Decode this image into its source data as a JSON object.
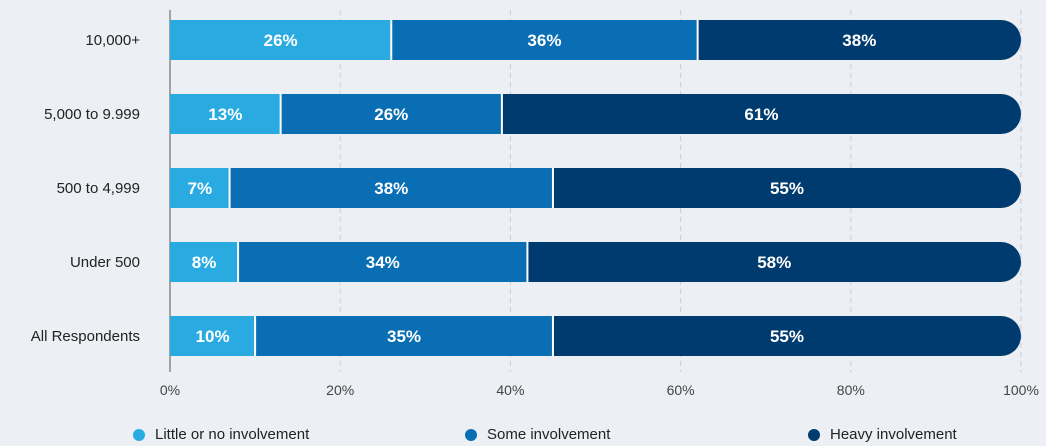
{
  "chart_data": {
    "type": "bar",
    "orientation": "horizontal",
    "stacked": true,
    "categories": [
      "10,000+",
      "5,000 to 9.999",
      "500 to 4,999",
      "Under 500",
      "All Respondents"
    ],
    "series": [
      {
        "name": "Little or no involvement",
        "color": "#29abe2",
        "values": [
          26,
          13,
          7,
          8,
          10
        ]
      },
      {
        "name": "Some involvement",
        "color": "#0a6eb4",
        "values": [
          36,
          26,
          38,
          34,
          35
        ]
      },
      {
        "name": "Heavy involvement",
        "color": "#003b6f",
        "values": [
          38,
          61,
          55,
          58,
          55
        ]
      }
    ],
    "value_labels": [
      [
        "26%",
        "36%",
        "38%"
      ],
      [
        "13%",
        "26%",
        "61%"
      ],
      [
        "7%",
        "38%",
        "55%"
      ],
      [
        "8%",
        "34%",
        "58%"
      ],
      [
        "10%",
        "35%",
        "55%"
      ]
    ],
    "xlim": [
      0,
      100
    ],
    "x_ticks": [
      "0%",
      "20%",
      "40%",
      "60%",
      "80%",
      "100%"
    ],
    "grid": true,
    "legend_position": "bottom"
  }
}
